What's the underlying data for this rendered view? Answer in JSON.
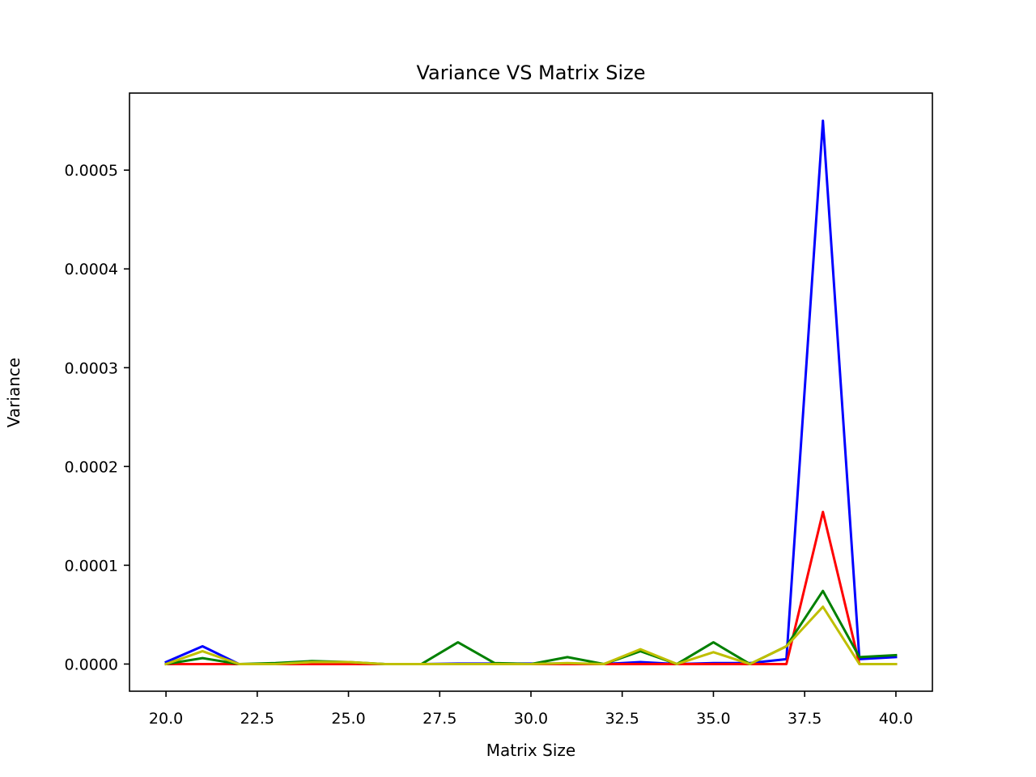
{
  "chart_data": {
    "type": "line",
    "title": "Variance VS Matrix Size",
    "xlabel": "Matrix Size",
    "ylabel": "Variance",
    "xlim": [
      19.0,
      41.0
    ],
    "ylim": [
      -2.75e-05,
      0.000578
    ],
    "xticks": [
      20.0,
      22.5,
      25.0,
      27.5,
      30.0,
      32.5,
      35.0,
      37.5,
      40.0
    ],
    "xtick_labels": [
      "20.0",
      "22.5",
      "25.0",
      "27.5",
      "30.0",
      "32.5",
      "35.0",
      "37.5",
      "40.0"
    ],
    "yticks": [
      0.0,
      0.0001,
      0.0002,
      0.0003,
      0.0004,
      0.0005
    ],
    "ytick_labels": [
      "0.0000",
      "0.0001",
      "0.0002",
      "0.0003",
      "0.0004",
      "0.0005"
    ],
    "grid": false,
    "x": [
      20,
      21,
      22,
      23,
      24,
      25,
      26,
      27,
      28,
      29,
      30,
      31,
      32,
      33,
      34,
      35,
      36,
      37,
      38,
      39,
      40
    ],
    "series": [
      {
        "color": "#0000ff",
        "values": [
          2e-06,
          1.8e-05,
          0.0,
          0.0,
          5e-07,
          1e-06,
          0.0,
          0.0,
          5e-07,
          5e-07,
          5e-07,
          5e-07,
          0.0,
          2e-06,
          0.0,
          1e-06,
          1e-06,
          5e-06,
          0.00055,
          5e-06,
          7e-06
        ]
      },
      {
        "color": "#ff0000",
        "values": [
          0.0,
          0.0,
          0.0,
          0.0,
          0.0,
          0.0,
          0.0,
          0.0,
          0.0,
          0.0,
          0.0,
          0.0,
          0.0,
          0.0,
          0.0,
          0.0,
          0.0,
          0.0,
          0.000154,
          0.0,
          0.0
        ]
      },
      {
        "color": "#008000",
        "values": [
          0.0,
          6e-06,
          0.0,
          1e-06,
          3e-06,
          2e-06,
          0.0,
          0.0,
          2.2e-05,
          1e-06,
          0.0,
          7e-06,
          0.0,
          1.3e-05,
          0.0,
          2.2e-05,
          0.0,
          1.8e-05,
          7.4e-05,
          7e-06,
          9e-06
        ]
      },
      {
        "color": "#bfbf00",
        "values": [
          0.0,
          1.3e-05,
          0.0,
          0.0,
          2e-06,
          2e-06,
          0.0,
          0.0,
          0.0,
          0.0,
          0.0,
          1e-06,
          0.0,
          1.5e-05,
          0.0,
          1.2e-05,
          0.0,
          1.8e-05,
          5.8e-05,
          0.0,
          0.0
        ]
      }
    ]
  }
}
